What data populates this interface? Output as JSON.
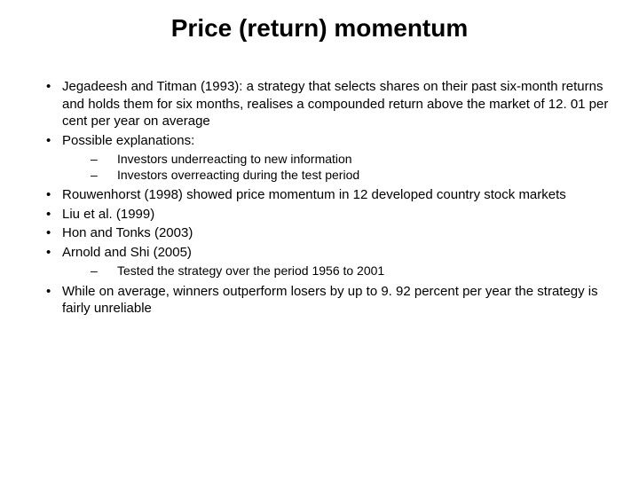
{
  "title": "Price (return) momentum",
  "bullets": {
    "b1": "Jegadeesh and Titman (1993): a strategy that selects shares on their past six-month returns and holds them for six months, realises a compounded return above the market of 12. 01 per cent per year on average",
    "b2": "Possible explanations:",
    "b2_sub1": "Investors underreacting to new information",
    "b2_sub2": "Investors overreacting during the test period",
    "b3": "Rouwenhorst (1998) showed price momentum in 12 developed country stock markets",
    "b4": "Liu et al. (1999)",
    "b5": "Hon and Tonks (2003)",
    "b6": "Arnold and Shi (2005)",
    "b6_sub1": "Tested the strategy over the period 1956 to 2001",
    "b7": "While on average, winners outperform losers by up to 9. 92 percent per year the strategy is fairly unreliable"
  }
}
